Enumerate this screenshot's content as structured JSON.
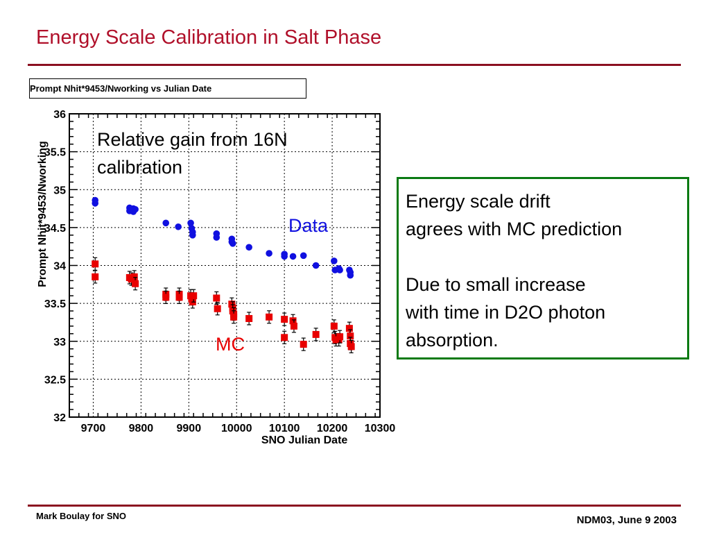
{
  "slide": {
    "title": "Energy Scale Calibration in Salt Phase",
    "footer_left": "Mark Boulay for SNO",
    "footer_right": "NDM03, June 9 2003"
  },
  "colors": {
    "title": "#b0102a",
    "rule": "#8b1020",
    "data_series": "#1010e0",
    "mc_series": "#e80000",
    "callout_border": "#0a7a12"
  },
  "callout": {
    "para1": "Energy scale drift\nagrees with MC prediction",
    "para2": "Due to small increase\nwith time in D2O photon\nabsorption."
  },
  "chart_data": {
    "type": "scatter",
    "title": "Prompt Nhit*9453/Nworking vs Julian Date",
    "xlabel": "SNO Julian Date",
    "ylabel": "Prompt Nhit*9453/Nworking",
    "xlim": [
      9650,
      10300
    ],
    "ylim": [
      32,
      36
    ],
    "xticks": [
      9700,
      9800,
      9900,
      10000,
      10100,
      10200,
      10300
    ],
    "yticks": [
      32,
      32.5,
      33,
      33.5,
      34,
      34.5,
      35,
      35.5,
      36
    ],
    "grid": true,
    "annotations": [
      "Relative gain from 16N\ncalibration"
    ],
    "series": [
      {
        "name": "Data",
        "marker": "circle",
        "color": "#1010e0",
        "x": [
          9704,
          9704,
          9776,
          9776,
          9784,
          9784,
          9788,
          9852,
          9878,
          9904,
          9906,
          9908,
          9908,
          9958,
          9958,
          9990,
          9990,
          9992,
          10026,
          10068,
          10100,
          10100,
          10118,
          10140,
          10166,
          10204,
          10206,
          10214,
          10216,
          10236,
          10238,
          10238
        ],
        "y": [
          34.86,
          34.82,
          34.76,
          34.72,
          34.75,
          34.71,
          34.74,
          34.56,
          34.51,
          34.56,
          34.49,
          34.44,
          34.4,
          34.42,
          34.37,
          34.35,
          34.31,
          34.29,
          34.24,
          34.16,
          34.15,
          34.12,
          34.12,
          34.13,
          34.0,
          34.06,
          33.94,
          33.96,
          33.94,
          33.94,
          33.91,
          33.87
        ]
      },
      {
        "name": "MC",
        "marker": "square",
        "color": "#e80000",
        "x": [
          9704,
          9704,
          9776,
          9780,
          9786,
          9788,
          9852,
          9852,
          9880,
          9880,
          9904,
          9906,
          9908,
          9910,
          9958,
          9960,
          9990,
          9992,
          9992,
          9994,
          9994,
          10026,
          10068,
          10100,
          10100,
          10118,
          10120,
          10140,
          10166,
          10204,
          10206,
          10208,
          10214,
          10216,
          10236,
          10238,
          10238,
          10240
        ],
        "y": [
          34.02,
          33.85,
          33.84,
          33.82,
          33.85,
          33.76,
          33.62,
          33.58,
          33.62,
          33.58,
          33.6,
          33.56,
          33.52,
          33.6,
          33.57,
          33.43,
          33.49,
          33.44,
          33.4,
          33.36,
          33.32,
          33.3,
          33.32,
          33.29,
          33.05,
          33.27,
          33.2,
          32.96,
          33.09,
          33.2,
          33.05,
          33.02,
          33.02,
          33.06,
          33.17,
          33.07,
          32.97,
          32.93
        ]
      }
    ],
    "series_labels": [
      "Data",
      "MC"
    ]
  }
}
